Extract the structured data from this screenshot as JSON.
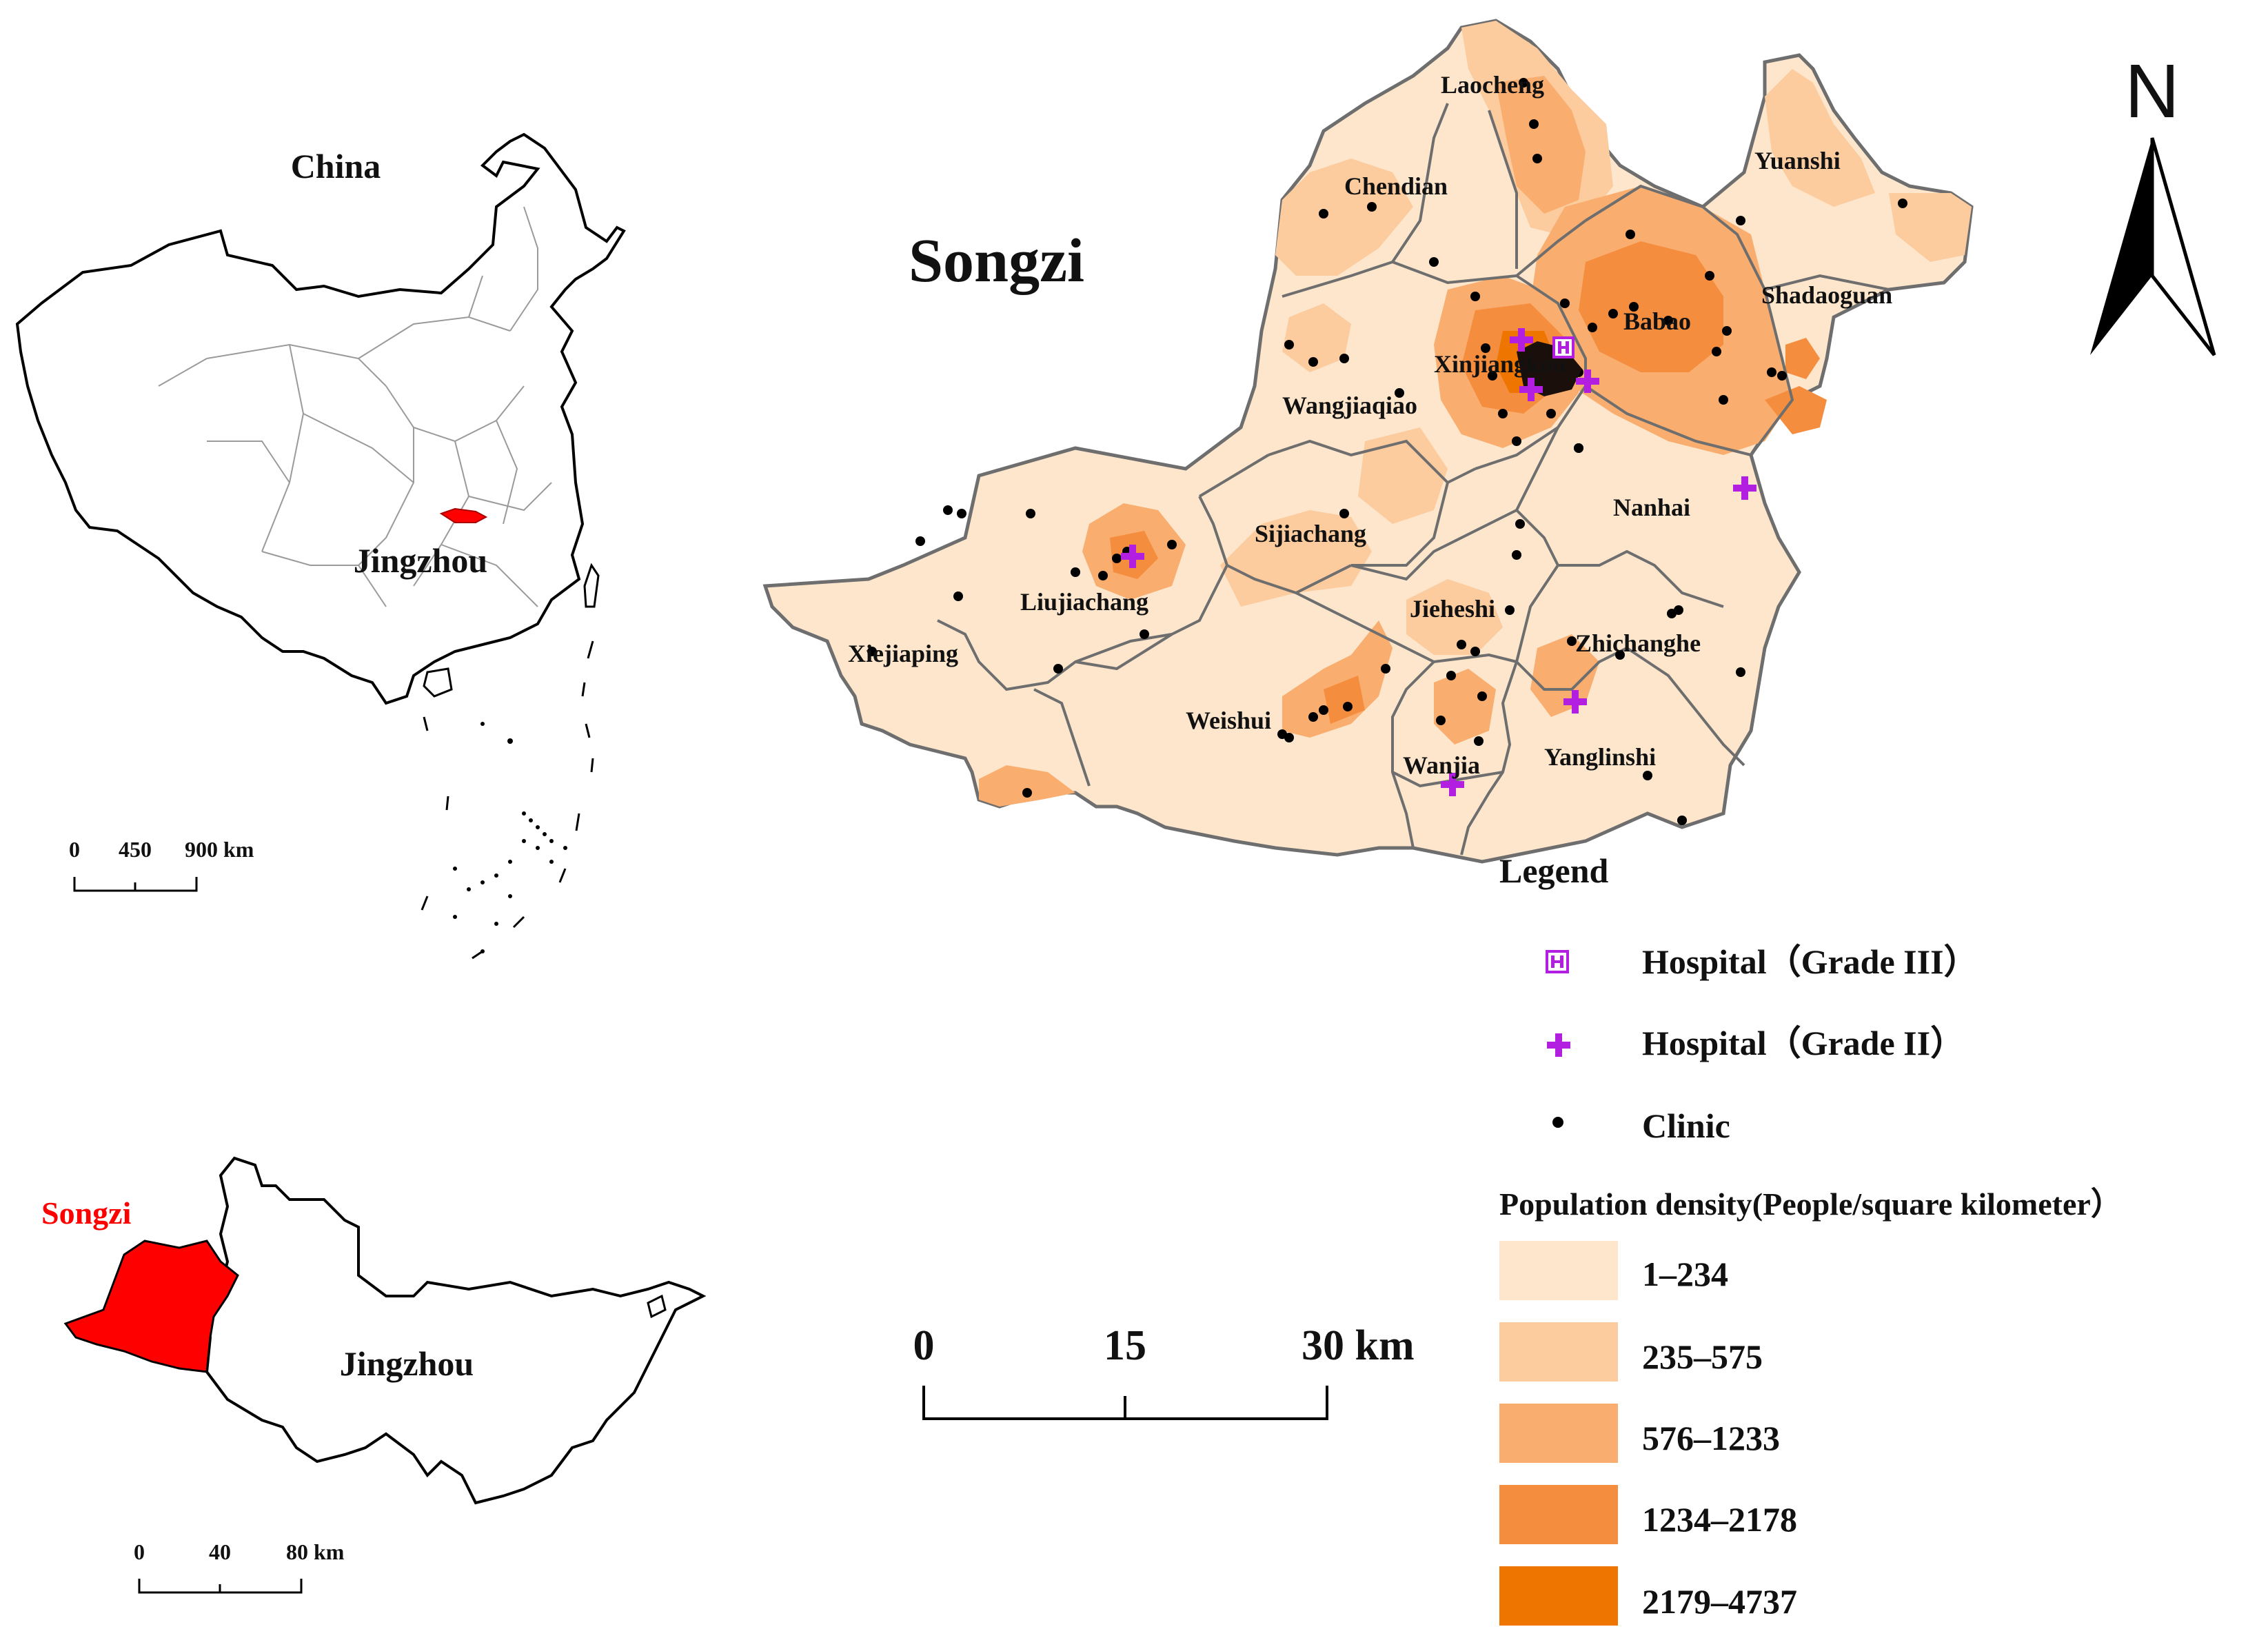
{
  "inset_china": {
    "title": "China",
    "region_label": "Jingzhou",
    "scale": {
      "ticks": [
        "0",
        "450",
        "900 km"
      ]
    }
  },
  "inset_jingzhou": {
    "highlight_label": "Songzi",
    "region_label": "Jingzhou",
    "scale": {
      "ticks": [
        "0",
        "40",
        "80 km"
      ]
    }
  },
  "main_map": {
    "title": "Songzi",
    "north_label": "N",
    "scale": {
      "ticks": [
        "0",
        "15",
        "30 km"
      ]
    },
    "towns": [
      "Laocheng",
      "Chendian",
      "Yuanshi",
      "Babao",
      "Shadaoguan",
      "Xinjiangkou",
      "Wangjiaqiao",
      "Nanhai",
      "Sijiachang",
      "Liujiachang",
      "Jieheshi",
      "Zhichanghe",
      "Xiejiaping",
      "Weishui",
      "Wanjia",
      "Yanglinshi"
    ]
  },
  "legend": {
    "title": "Legend",
    "symbols": [
      {
        "label": "Hospital（Grade III）",
        "icon": "hospital-grade-iii-icon",
        "color": "#b31fe0"
      },
      {
        "label": "Hospital（Grade II）",
        "icon": "hospital-grade-ii-icon",
        "color": "#b31fe0"
      },
      {
        "label": "Clinic",
        "icon": "clinic-dot-icon",
        "color": "#000000"
      }
    ],
    "density_title": "Population density(People/square kilometer）",
    "density_classes": [
      {
        "label": "1–234",
        "color": "#fde6cc"
      },
      {
        "label": "235–575",
        "color": "#fccb9e"
      },
      {
        "label": "576–1233",
        "color": "#f9ad6e"
      },
      {
        "label": "1234–2178",
        "color": "#f58d3e"
      },
      {
        "label": "2179–4737",
        "color": "#ee7600"
      }
    ],
    "highlight_color": "#ff0000"
  }
}
